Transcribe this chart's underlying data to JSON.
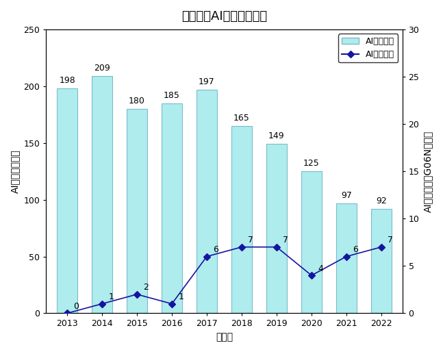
{
  "title": "仙台市のAI関連特許出願",
  "years": [
    2013,
    2014,
    2015,
    2016,
    2017,
    2018,
    2019,
    2020,
    2021,
    2022
  ],
  "ai_related": [
    198,
    209,
    180,
    185,
    197,
    165,
    149,
    125,
    97,
    92
  ],
  "ai_core": [
    0,
    1,
    2,
    1,
    6,
    7,
    7,
    4,
    6,
    7
  ],
  "bar_color": "#AEECED",
  "bar_edge_color": "#7BBCCC",
  "line_color": "#1515A0",
  "marker_color": "#1515A0",
  "marker_face_color": "#1515A0",
  "background_color": "#FFFFFF",
  "xlabel": "出願年",
  "ylabel_left": "AI関連発明／件",
  "ylabel_right": "AIコア発明（G06N）／件",
  "legend_ai_related": "AI関連発明",
  "legend_ai_core": "AIコア発明",
  "ylim_left": [
    0,
    250
  ],
  "ylim_right": [
    0,
    30
  ],
  "yticks_left": [
    0,
    50,
    100,
    150,
    200,
    250
  ],
  "yticks_right": [
    0,
    5,
    10,
    15,
    20,
    25,
    30
  ]
}
